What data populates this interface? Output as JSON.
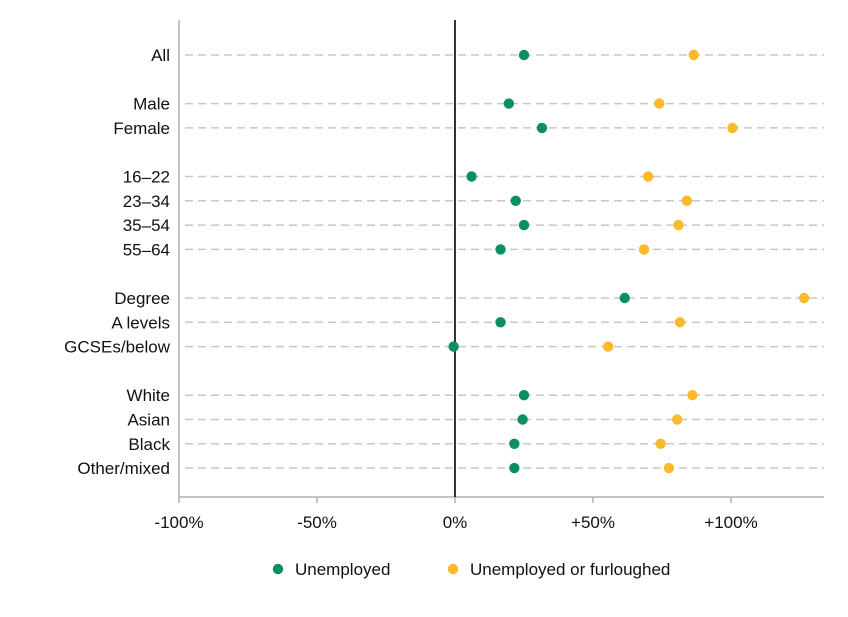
{
  "chart_data": {
    "type": "scatter",
    "title": "",
    "xlabel": "",
    "ylabel": "",
    "xlim": [
      -100,
      134
    ],
    "x_ticks": [
      {
        "value": -100,
        "label": "-100%"
      },
      {
        "value": -50,
        "label": "-50%"
      },
      {
        "value": 0,
        "label": "0%"
      },
      {
        "value": 50,
        "label": "+50%"
      },
      {
        "value": 100,
        "label": "+100%"
      }
    ],
    "categories": [
      {
        "label": "All",
        "group": 0
      },
      {
        "label": "Male",
        "group": 1
      },
      {
        "label": "Female",
        "group": 1
      },
      {
        "label": "16–22",
        "group": 2
      },
      {
        "label": "23–34",
        "group": 2
      },
      {
        "label": "35–54",
        "group": 2
      },
      {
        "label": "55–64",
        "group": 2
      },
      {
        "label": "Degree",
        "group": 3
      },
      {
        "label": "A levels",
        "group": 3
      },
      {
        "label": "GCSEs/below",
        "group": 3
      },
      {
        "label": "White",
        "group": 4
      },
      {
        "label": "Asian",
        "group": 4
      },
      {
        "label": "Black",
        "group": 4
      },
      {
        "label": "Other/mixed",
        "group": 4
      }
    ],
    "series": [
      {
        "name": "Unemployed",
        "color": "#0b8f5e",
        "values": [
          25,
          19.5,
          31.5,
          6,
          22,
          25,
          16.5,
          61.5,
          16.5,
          -0.5,
          25,
          24.5,
          21.5,
          21.5
        ]
      },
      {
        "name": "Unemployed or furloughed",
        "color": "#fbb92b",
        "values": [
          86.5,
          74,
          100.5,
          70,
          84,
          81,
          68.5,
          126.5,
          81.5,
          55.5,
          86,
          80.5,
          74.5,
          77.5
        ]
      }
    ],
    "grid": true,
    "legend_position": "bottom",
    "zero_line": true
  }
}
